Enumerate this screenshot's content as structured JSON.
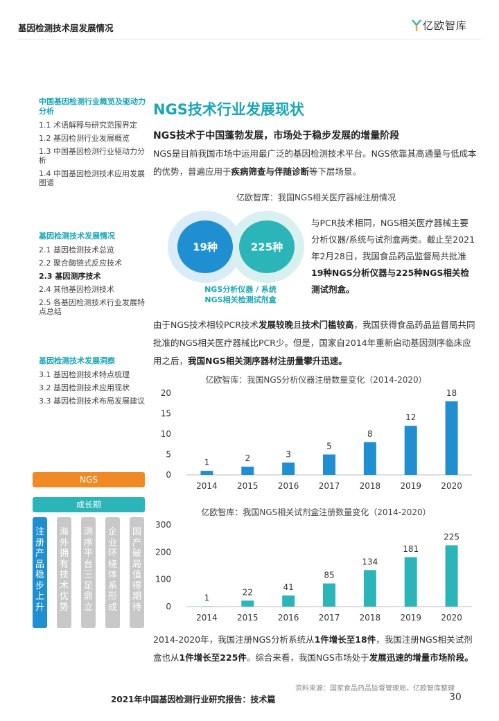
{
  "header": {
    "title": "基因检测技术层发展情况",
    "logo_text": "亿欧智库"
  },
  "sidebar": {
    "sections": [
      {
        "heading": "中国基因检测行业概览及驱动力分析",
        "items": [
          "1.1 术语解释与研究范围界定",
          "1.2 基因检测行业发展概览",
          "1.3 中国基因检测行业驱动力分析",
          "1.4 中国基因检测技术应用发展图谱"
        ]
      },
      {
        "heading": "基因检测技术发展情况",
        "items": [
          "2.1 基因检测技术总览",
          "2.2 聚合酶链式反应技术",
          "2.3 基因测序技术",
          "2.4 其他基因检测技术",
          "2.5 各基因检测技术行业发展特点总结"
        ]
      },
      {
        "heading": "基因检测技术发展洞察",
        "items": [
          "3.1 基因检测技术特点梳理",
          "3.2 基因检测技术应用现状",
          "3.3 基因检测技术布局发展建议"
        ]
      }
    ],
    "active": "2.3 基因测序技术",
    "tag_ngs": "NGS",
    "tag_stage": "成长期",
    "columns": [
      "注册产品稳步上升",
      "海外拥有技术优势",
      "测序平台三足鼎立",
      "企业环绕体系形成",
      "国产破局值得期待"
    ],
    "colors": {
      "orange": "#f08a24",
      "teal": "#2bb5b8",
      "blue": "#1f8fd1",
      "grey": "#c8c8c8"
    }
  },
  "main": {
    "title": "NGS技术行业发展现状",
    "subhead": "NGS技术于中国蓬勃发展，市场处于稳步发展的增量阶段",
    "intro": "NGS是目前我国市场中运用最广泛的基因检测技术平台。NGS依靠其高通量与低成本的优势，普遍应用于",
    "intro_bold": "疾病筛查与伴随诊断",
    "intro_end": "等下层场景。",
    "venn_caption": "亿欧智库：我国NGS相关医疗器械注册情况",
    "venn_left": "19种",
    "venn_right": "225种",
    "venn_legend1": "NGS分析仪器 / 系统",
    "venn_legend2": "NGS相关检测试剂盒",
    "venn_text_a": "与PCR技术相同，NGS相关医疗器械主要分析仪器/系统与试剂盒两类。截止至2021年2月28日，我国食品药品监督局共批准",
    "venn_text_b": "19种NGS分析仪器与225种NGS相关检测试剂盒。",
    "para2_a": "由于NGS技术相较PCR技术",
    "para2_b1": "发展较晚",
    "para2_c": "且",
    "para2_b2": "技术门槛较高",
    "para2_d": "，我国获得食品药品监督局共同批准的NGS相关医疗器械比PCR少。但是，国家自2014年重新启动基因测序临床应用之后，",
    "para2_b3": "我国NGS相关测序器材注册量攀升迅速。",
    "para3_a": "2014-2020年，我国注册NGS分析系统从",
    "para3_b1": "1件增长至18件",
    "para3_c": "，我国注册NGS相关试剂盒也从",
    "para3_b2": "1件增长至225件",
    "para3_d": "。综合来看，我国NGS市场处于",
    "para3_b3": "发展迅速的增量市场阶段。",
    "source": "资料来源：国家食品药品监督管理局，亿欧智库整理"
  },
  "footer": {
    "title": "2021年中国基因检测行业研究报告：技术篇",
    "page": "30"
  },
  "chart_data": [
    {
      "type": "bar",
      "title": "亿欧智库：我国NGS分析仪器注册数量变化（2014-2020）",
      "categories": [
        "2014",
        "2015",
        "2016",
        "2017",
        "2018",
        "2019",
        "2020"
      ],
      "values": [
        1,
        2,
        3,
        5,
        8,
        12,
        18
      ],
      "ylim": [
        0,
        20
      ],
      "yticks": [
        0,
        5,
        10,
        15,
        20
      ],
      "color": "#1f8fd1"
    },
    {
      "type": "bar",
      "title": "亿欧智库：我国NGS相关试剂盒注册数量变化（2014-2020）",
      "categories": [
        "2014",
        "2015",
        "2016",
        "2017",
        "2018",
        "2019",
        "2020"
      ],
      "values": [
        1,
        22,
        41,
        85,
        134,
        181,
        225
      ],
      "ylim": [
        0,
        300
      ],
      "yticks": [
        0,
        100,
        200,
        300
      ],
      "color": "#2bb5b8"
    }
  ]
}
